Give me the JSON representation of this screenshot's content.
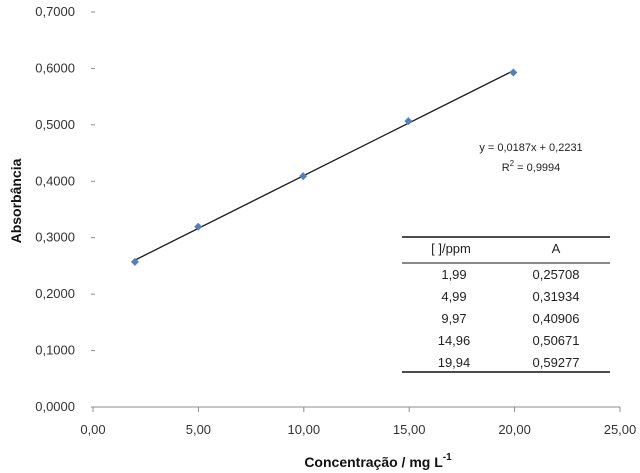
{
  "chart_data": {
    "type": "scatter",
    "xlabel": "Concentração / mg L",
    "xlabel_superscript": "-1",
    "ylabel": "Absorbância",
    "xlim": [
      0,
      25
    ],
    "ylim": [
      0,
      0.7
    ],
    "xticks": [
      0,
      5,
      10,
      15,
      20,
      25
    ],
    "xtick_labels": [
      "0,00",
      "5,00",
      "10,00",
      "15,00",
      "20,00",
      "25,00"
    ],
    "yticks": [
      0,
      0.1,
      0.2,
      0.3,
      0.4,
      0.5,
      0.6,
      0.7
    ],
    "ytick_labels": [
      "0,0000",
      "0,1000",
      "0,2000",
      "0,3000",
      "0,4000",
      "0,5000",
      "0,6000",
      "0,7000"
    ],
    "grid": false,
    "series": [
      {
        "x": [
          1.99,
          4.99,
          9.97,
          14.96,
          19.94
        ],
        "y": [
          0.25708,
          0.31934,
          0.40906,
          0.50671,
          0.59277
        ],
        "color": "#4f81bd",
        "marker": "diamond"
      }
    ],
    "trendline": {
      "slope": 0.0187,
      "intercept": 0.2231,
      "x_range": [
        1.99,
        19.94
      ],
      "color": "#1a1a1a",
      "equation": "y = 0,0187x + 0,2231",
      "r2_label": "R",
      "r2_superscript": "2",
      "r2_value": " = 0,9994"
    },
    "table": {
      "headers": [
        "[ ]/ppm",
        "A"
      ],
      "rows": [
        [
          "1,99",
          "0,25708"
        ],
        [
          "4,99",
          "0,31934"
        ],
        [
          "9,97",
          "0,40906"
        ],
        [
          "14,96",
          "0,50671"
        ],
        [
          "19,94",
          "0,59277"
        ]
      ]
    }
  }
}
